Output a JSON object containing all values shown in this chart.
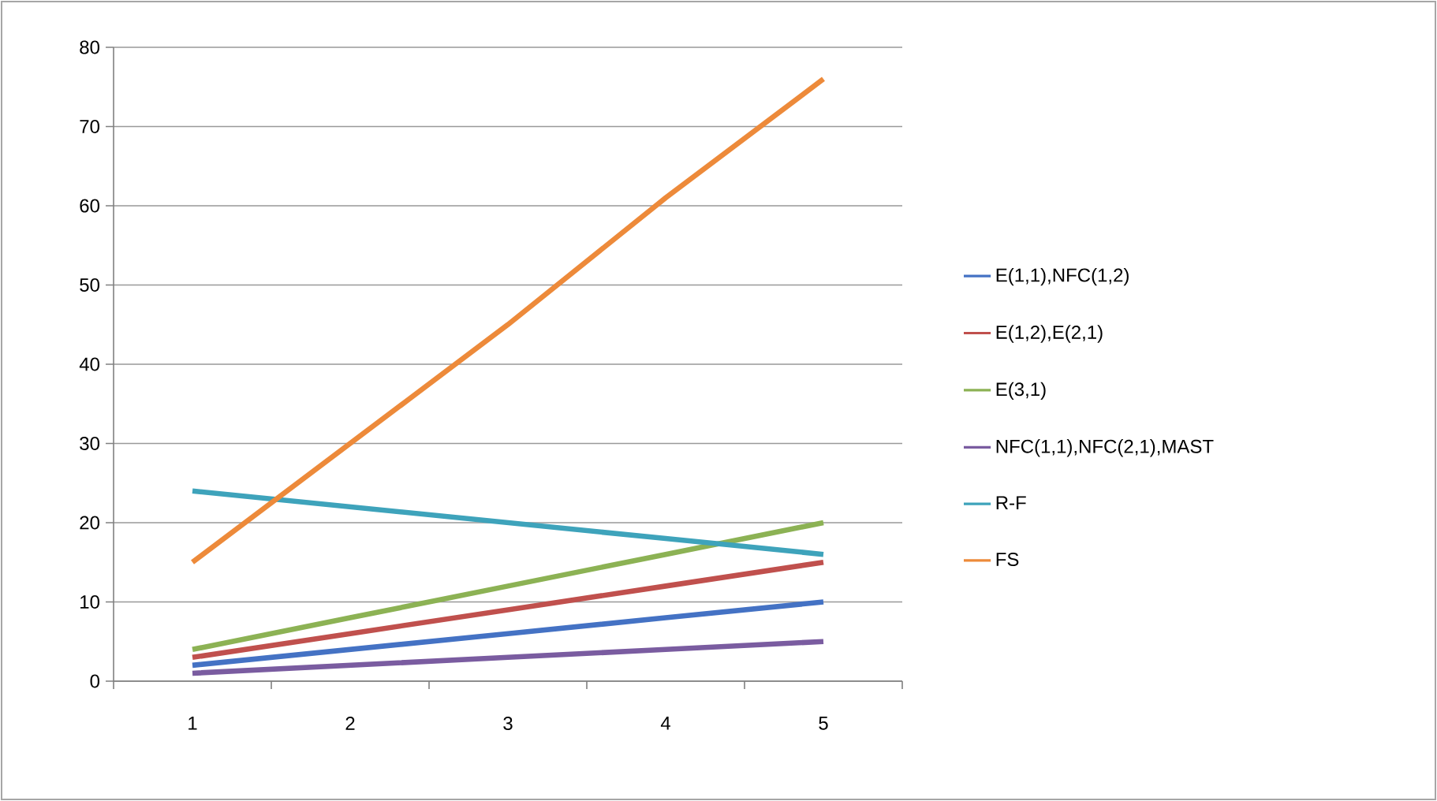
{
  "chart_data": {
    "type": "line",
    "categories": [
      "1",
      "2",
      "3",
      "4",
      "5"
    ],
    "series": [
      {
        "name": "E(1,1),NFC(1,2)",
        "color": "#4472c4",
        "values": [
          2,
          4,
          6,
          8,
          10
        ]
      },
      {
        "name": "E(1,2),E(2,1)",
        "color": "#c0504d",
        "values": [
          3,
          6,
          9,
          12,
          15
        ]
      },
      {
        "name": "E(3,1)",
        "color": "#8cb254",
        "values": [
          4,
          8,
          12,
          16,
          20
        ]
      },
      {
        "name": "NFC(1,1),NFC(2,1),MAST",
        "color": "#7a5ca0",
        "values": [
          1,
          2,
          3,
          4,
          5
        ]
      },
      {
        "name": "R-F",
        "color": "#3ea3bb",
        "values": [
          24,
          22,
          20,
          18,
          16
        ]
      },
      {
        "name": "FS",
        "color": "#ed8a3a",
        "values": [
          15,
          30,
          45,
          61,
          76
        ]
      }
    ],
    "ylim": [
      0,
      80
    ],
    "yticks": [
      0,
      10,
      20,
      30,
      40,
      50,
      60,
      70,
      80
    ],
    "grid": "y",
    "legend": "right",
    "marker": "none",
    "line_style": "solid"
  }
}
